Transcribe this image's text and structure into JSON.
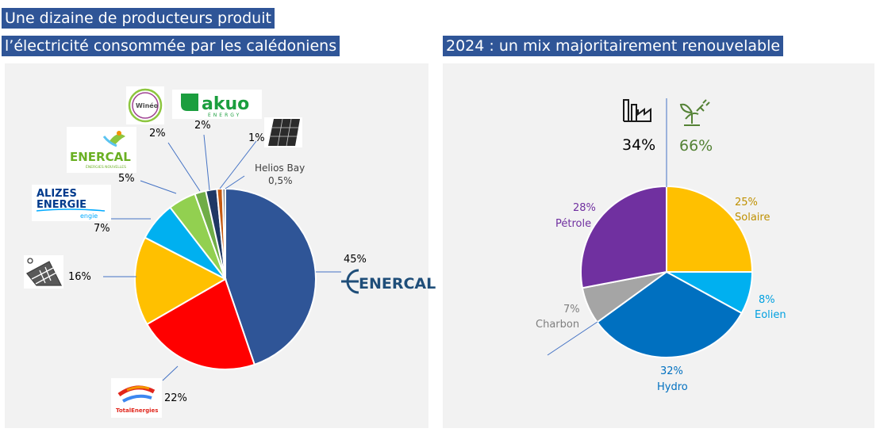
{
  "left": {
    "title_line1": "Une dizaine de producteurs produit",
    "title_line2": "l’électricité consommée par les calédoniens",
    "logos": {
      "wineo": "Winéo",
      "akuo": "akuo",
      "akuo_sub": "ENERGY",
      "enercal_small": "ENERCAL",
      "enercal_small_sub": "ÉNERGIES NOUVELLES",
      "alizes1": "ALIZES",
      "alizes2": "ENERGIE",
      "engie": "engie",
      "enercal_big": "ENERCAL",
      "total": "TotalEnergies"
    },
    "chart_data": {
      "type": "pie",
      "title": "",
      "slices": [
        {
          "name": "Enercal",
          "value": 45,
          "label": "45%",
          "color": "#2f5597"
        },
        {
          "name": "TotalEnergies",
          "value": 22,
          "label": "22%",
          "color": "#ff0000"
        },
        {
          "name": "Solaire toiture",
          "value": 16,
          "label": "16%",
          "color": "#ffc000"
        },
        {
          "name": "Alizés Energie",
          "value": 7,
          "label": "7%",
          "color": "#00b0f0"
        },
        {
          "name": "Enercal Energies Nouvelles",
          "value": 5,
          "label": "5%",
          "color": "#92d050"
        },
        {
          "name": "Winéo",
          "value": 2,
          "label": "2%",
          "color": "#70ad47"
        },
        {
          "name": "Akuo Energy",
          "value": 2,
          "label": "2%",
          "color": "#1f3864"
        },
        {
          "name": "Solaire",
          "value": 1,
          "label": "1%",
          "color": "#c55a11"
        },
        {
          "name": "Helios Bay",
          "value": 0.5,
          "label": "0,5%",
          "color": "#7f7f7f"
        }
      ],
      "helios_label": "Helios Bay"
    }
  },
  "right": {
    "title": "2024 : un mix majoritairement renouvelable",
    "fossil_pct": "34%",
    "renewable_pct": "66%",
    "chart_data": {
      "type": "pie",
      "title": "",
      "slices": [
        {
          "name": "Solaire",
          "value": 25,
          "label": "25%",
          "color": "#ffc000",
          "text_color": "#bf9000"
        },
        {
          "name": "Eolien",
          "value": 8,
          "label": "8%",
          "color": "#00b0f0",
          "text_color": "#00a0e0"
        },
        {
          "name": "Hydro",
          "value": 32,
          "label": "32%",
          "color": "#0070c0",
          "text_color": "#0070c0"
        },
        {
          "name": "Charbon",
          "value": 7,
          "label": "7%",
          "color": "#a5a5a5",
          "text_color": "#7f7f7f"
        },
        {
          "name": "Pétrole",
          "value": 28,
          "label": "28%",
          "color": "#7030a0",
          "text_color": "#7030a0"
        }
      ]
    }
  }
}
